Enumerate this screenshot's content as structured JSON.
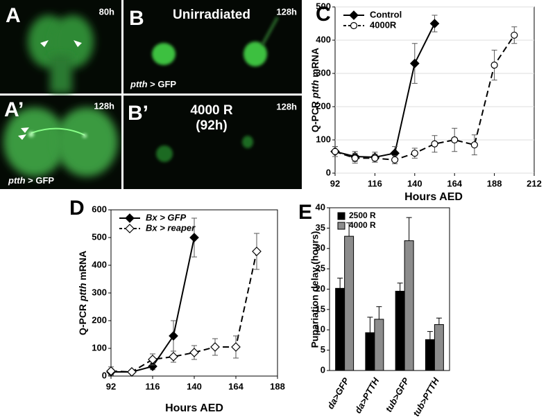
{
  "images": [
    {
      "label": "A",
      "time": "80h"
    },
    {
      "label": "A’",
      "time": "128h",
      "genotype": [
        "ptth",
        "> GFP"
      ]
    },
    {
      "label": "B",
      "title": "Unirradiated",
      "time": "128h",
      "genotype": [
        "ptth",
        "> GFP"
      ]
    },
    {
      "label": "B’",
      "title": [
        "4000 R",
        "(92h)"
      ],
      "time": "128h"
    }
  ],
  "chart_data": [
    {
      "type": "line",
      "panel": "C",
      "xlabel": "Hours AED",
      "ylabel": [
        "Q-PCR",
        "ptth",
        "mRNA"
      ],
      "xlim": [
        92,
        212
      ],
      "xticks": [
        92,
        116,
        140,
        164,
        188,
        212
      ],
      "ylim": [
        0,
        500
      ],
      "yticks": [
        0,
        100,
        200,
        300,
        400,
        500
      ],
      "grid": true,
      "legend": "upper left",
      "series": [
        {
          "name": "Control",
          "color": "#000000",
          "line_style": "solid",
          "marker": "diamond",
          "marker_fill": "filled",
          "x": [
            92,
            104,
            116,
            128,
            140,
            152
          ],
          "values": [
            65,
            50,
            48,
            60,
            330,
            450
          ],
          "errors": [
            15,
            15,
            15,
            20,
            60,
            25
          ]
        },
        {
          "name": "4000R",
          "color": "#000000",
          "line_style": "dashed",
          "marker": "circle",
          "marker_fill": "open",
          "x": [
            92,
            104,
            116,
            128,
            140,
            152,
            164,
            176,
            188,
            200
          ],
          "values": [
            65,
            45,
            45,
            40,
            60,
            88,
            100,
            85,
            325,
            415
          ],
          "errors": [
            15,
            15,
            12,
            12,
            15,
            25,
            35,
            30,
            45,
            25
          ]
        }
      ]
    },
    {
      "type": "line",
      "panel": "D",
      "xlabel": "Hours AED",
      "ylabel": [
        "Q-PCR",
        "ptth",
        "mRNA"
      ],
      "xlim": [
        92,
        188
      ],
      "xticks": [
        92,
        116,
        140,
        164,
        188
      ],
      "ylim": [
        0,
        600
      ],
      "yticks": [
        0,
        100,
        200,
        300,
        400,
        500,
        600
      ],
      "grid": false,
      "legend": "upper left",
      "series": [
        {
          "name": "Bx > GFP",
          "color": "#000000",
          "line_style": "solid",
          "marker": "diamond",
          "marker_fill": "filled",
          "x": [
            92,
            104,
            116,
            128,
            140
          ],
          "values": [
            15,
            15,
            35,
            145,
            500
          ],
          "errors": [
            10,
            5,
            12,
            55,
            70
          ]
        },
        {
          "name": "Bx > reaper",
          "color": "#000000",
          "line_style": "dashed",
          "marker": "diamond",
          "marker_fill": "open",
          "x": [
            92,
            104,
            116,
            128,
            140,
            152,
            164,
            176
          ],
          "values": [
            18,
            15,
            60,
            70,
            85,
            105,
            105,
            450
          ],
          "errors": [
            15,
            5,
            20,
            20,
            25,
            30,
            40,
            65
          ]
        }
      ]
    },
    {
      "type": "bar",
      "panel": "E",
      "ylabel": "Pupariation delay (hours)",
      "categories": [
        "da>GFP",
        "da>PTTH",
        "tub>GFP",
        "tub>PTTH"
      ],
      "ylim": [
        0,
        40
      ],
      "yticks": [
        0,
        5,
        10,
        15,
        20,
        25,
        30,
        35,
        40
      ],
      "legend": "upper left",
      "series": [
        {
          "name": "2500 R",
          "color": "#000000",
          "values": [
            20.2,
            9.3,
            19.5,
            7.6
          ],
          "errors": [
            2.5,
            3.8,
            2,
            2
          ]
        },
        {
          "name": "4000 R",
          "color": "#8c8c8c",
          "values": [
            33,
            12.6,
            31.9,
            11.3
          ],
          "errors": [
            3.3,
            3.1,
            5.7,
            1.6
          ]
        }
      ]
    }
  ]
}
